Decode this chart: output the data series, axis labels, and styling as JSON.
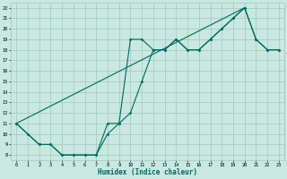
{
  "xlabel": "Humidex (Indice chaleur)",
  "bg_color": "#c8e8e0",
  "grid_color": "#a0c8c0",
  "line_color": "#006860",
  "xlim": [
    -0.5,
    23.5
  ],
  "ylim": [
    7.5,
    22.5
  ],
  "xticks": [
    0,
    1,
    2,
    3,
    4,
    5,
    6,
    7,
    8,
    9,
    10,
    11,
    12,
    13,
    14,
    15,
    16,
    17,
    18,
    19,
    20,
    21,
    22,
    23
  ],
  "yticks": [
    8,
    9,
    10,
    11,
    12,
    13,
    14,
    15,
    16,
    17,
    18,
    19,
    20,
    21,
    22
  ],
  "line1_x": [
    0,
    1,
    2,
    3,
    4,
    5,
    6,
    7,
    8,
    9,
    10,
    11,
    12,
    13,
    14,
    15,
    16,
    17,
    18,
    19,
    20,
    21,
    22,
    23
  ],
  "line1_y": [
    11,
    10,
    9,
    9,
    8,
    8,
    8,
    8,
    10,
    11,
    12,
    15,
    18,
    18,
    19,
    18,
    18,
    19,
    20,
    21,
    22,
    19,
    18,
    18
  ],
  "line2_x": [
    0,
    2,
    3,
    4,
    5,
    6,
    7,
    8,
    9,
    10,
    11,
    12,
    13,
    14,
    15,
    16,
    17,
    18,
    19,
    20,
    21,
    22,
    23
  ],
  "line2_y": [
    11,
    9,
    9,
    8,
    8,
    8,
    8,
    11,
    11,
    19,
    19,
    18,
    18,
    19,
    18,
    18,
    19,
    20,
    21,
    22,
    19,
    18,
    18
  ],
  "line3_x": [
    0,
    20
  ],
  "line3_y": [
    11,
    22
  ]
}
